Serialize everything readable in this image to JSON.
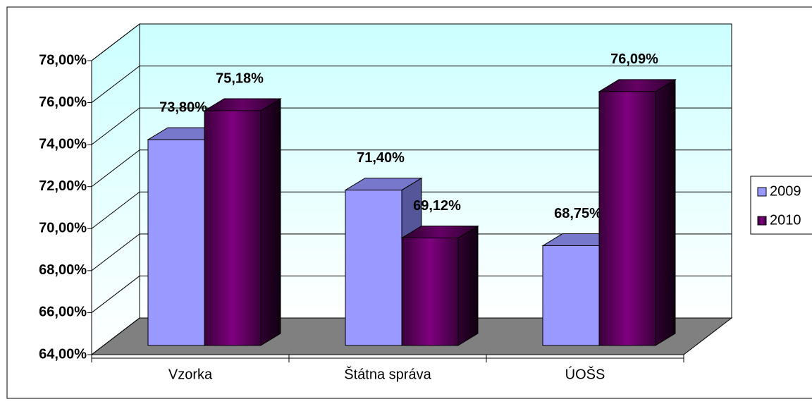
{
  "chart_data": {
    "type": "bar3d",
    "categories": [
      "Vzorka",
      "Štátna správa",
      "ÚOŠS"
    ],
    "series": [
      {
        "name": "2009",
        "color": "#9999ff",
        "values": [
          73.8,
          71.4,
          68.75
        ],
        "value_labels": [
          "73,80%",
          "71,40%",
          "68,75%"
        ]
      },
      {
        "name": "2010",
        "color": "#800080",
        "values": [
          75.18,
          69.12,
          76.09
        ],
        "value_labels": [
          "75,18%",
          "69,12%",
          "76,09%"
        ]
      }
    ],
    "ylim": [
      64,
      78
    ],
    "yticks": [
      {
        "value": 64,
        "label": "64,00%"
      },
      {
        "value": 66,
        "label": "66,00%"
      },
      {
        "value": 68,
        "label": "68,00%"
      },
      {
        "value": 70,
        "label": "70,00%"
      },
      {
        "value": 72,
        "label": "72,00%"
      },
      {
        "value": 74,
        "label": "74,00%"
      },
      {
        "value": 76,
        "label": "76,00%"
      },
      {
        "value": 78,
        "label": "78,00%"
      }
    ],
    "grid": true,
    "legend": "right"
  }
}
